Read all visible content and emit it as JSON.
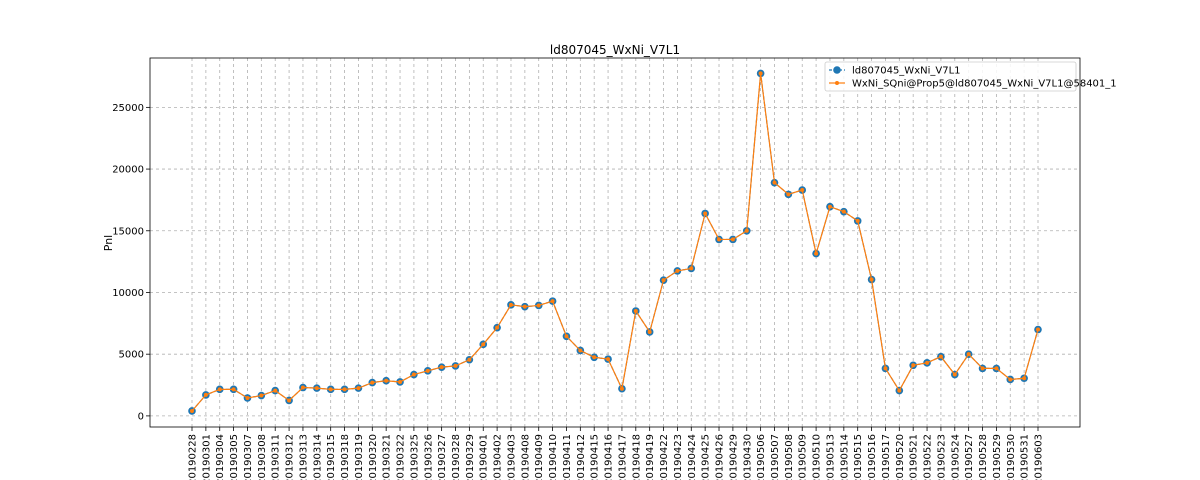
{
  "chart_data": {
    "type": "line",
    "title": "ld807045_WxNi_V7L1",
    "xlabel": "",
    "ylabel": "Pnl",
    "ylim": [
      -900,
      29000
    ],
    "yticks": [
      0,
      5000,
      10000,
      15000,
      20000,
      25000
    ],
    "grid": true,
    "legend_position": "top-right",
    "colors": {
      "series1": "#1f77b4",
      "series2": "#ff7f0e"
    },
    "categories": [
      "20190228",
      "20190301",
      "20190304",
      "20190305",
      "20190307",
      "20190308",
      "20190311",
      "20190312",
      "20190313",
      "20190314",
      "20190315",
      "20190318",
      "20190319",
      "20190320",
      "20190321",
      "20190322",
      "20190325",
      "20190326",
      "20190327",
      "20190328",
      "20190329",
      "20190401",
      "20190402",
      "20190403",
      "20190408",
      "20190409",
      "20190410",
      "20190411",
      "20190412",
      "20190415",
      "20190416",
      "20190417",
      "20190418",
      "20190419",
      "20190422",
      "20190423",
      "20190424",
      "20190425",
      "20190426",
      "20190429",
      "20190430",
      "20190506",
      "20190507",
      "20190508",
      "20190509",
      "20190510",
      "20190513",
      "20190514",
      "20190515",
      "20190516",
      "20190517",
      "20190520",
      "20190521",
      "20190522",
      "20190523",
      "20190524",
      "20190527",
      "20190528",
      "20190529",
      "20190530",
      "20190531",
      "20190603"
    ],
    "series": [
      {
        "name": "ld807045_WxNi_V7L1",
        "values": [
          400,
          1700,
          2150,
          2150,
          1450,
          1650,
          2050,
          1250,
          2300,
          2250,
          2150,
          2150,
          2250,
          2700,
          2850,
          2750,
          3350,
          3650,
          3950,
          4050,
          4550,
          5800,
          7150,
          9000,
          8850,
          8950,
          9300,
          6450,
          5300,
          4750,
          4600,
          2200,
          8500,
          6800,
          11000,
          11750,
          11950,
          16400,
          14300,
          14300,
          15000,
          27750,
          18900,
          17950,
          18300,
          13150,
          16950,
          16550,
          15800,
          11050,
          3850,
          2050,
          4100,
          4300,
          4800,
          3350,
          5000,
          3850,
          3850,
          2950,
          3050,
          7000
        ]
      },
      {
        "name": "WxNi_SQni@Prop5@ld807045_WxNi_V7L1@58401_1",
        "values": [
          400,
          1700,
          2150,
          2150,
          1450,
          1650,
          2050,
          1250,
          2300,
          2250,
          2150,
          2150,
          2250,
          2700,
          2850,
          2750,
          3350,
          3650,
          3950,
          4050,
          4550,
          5800,
          7150,
          9000,
          8850,
          8950,
          9300,
          6450,
          5300,
          4750,
          4600,
          2200,
          8500,
          6800,
          11000,
          11750,
          11950,
          16400,
          14300,
          14300,
          15000,
          27750,
          18900,
          17950,
          18300,
          13150,
          16950,
          16550,
          15800,
          11050,
          3850,
          2050,
          4100,
          4300,
          4800,
          3350,
          5000,
          3850,
          3850,
          2950,
          3050,
          7000
        ]
      }
    ]
  }
}
